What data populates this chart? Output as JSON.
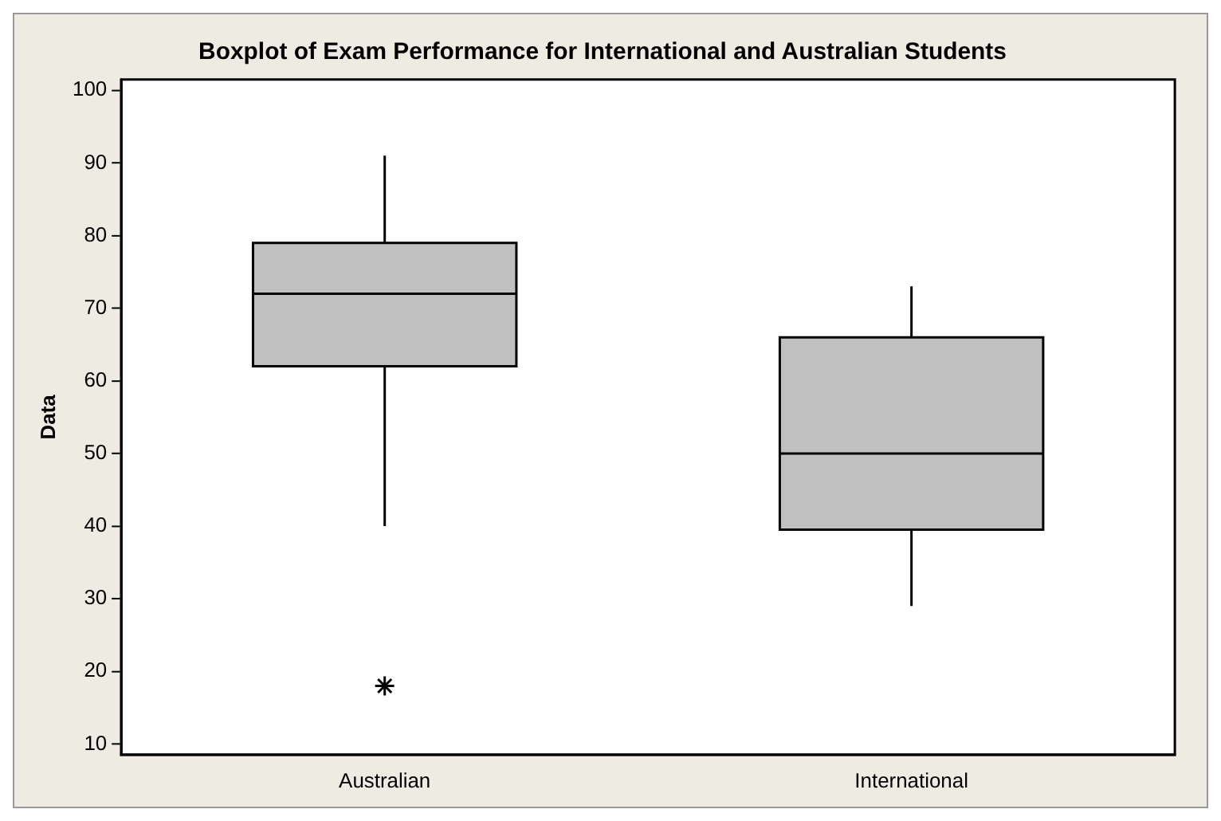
{
  "chart_data": {
    "type": "box",
    "title": "Boxplot of Exam Performance for International and Australian Students",
    "ylabel": "Data",
    "categories": [
      "Australian",
      "International"
    ],
    "boxes": [
      {
        "low": 40,
        "q1": 62,
        "median": 72,
        "q3": 79,
        "high": 91,
        "outliers": [
          18
        ]
      },
      {
        "low": 29,
        "q1": 39.5,
        "median": 50,
        "q3": 66,
        "high": 73
      }
    ],
    "color": "#c0c0c0",
    "ylim": [
      8.5,
      101.5
    ],
    "yticks": [
      10,
      20,
      30,
      40,
      50,
      60,
      70,
      80,
      90,
      100
    ],
    "grid": false,
    "legend": false
  }
}
